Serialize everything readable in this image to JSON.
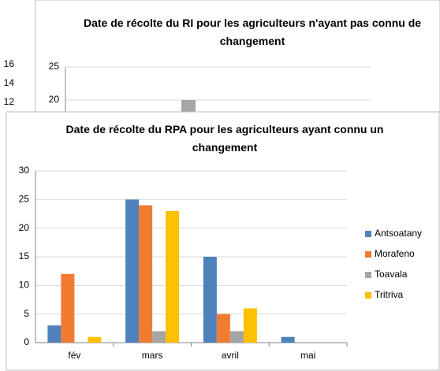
{
  "chart_data": [
    {
      "type": "bar",
      "title": "Date de récolte du RPA pour les agriculteurs ayant connu un changement",
      "categories": [
        "fév",
        "mars",
        "avril",
        "mai"
      ],
      "series": [
        {
          "name": "Antsoatany",
          "color": "#4f81bd",
          "values": [
            3,
            25,
            15,
            1
          ]
        },
        {
          "name": "Morafeno",
          "color": "#f07b31",
          "values": [
            12,
            24,
            5,
            0
          ]
        },
        {
          "name": "Toavala",
          "color": "#a5a5a5",
          "values": [
            0,
            2,
            2,
            0
          ]
        },
        {
          "name": "Tritriva",
          "color": "#ffc000",
          "values": [
            1,
            23,
            6,
            0
          ]
        }
      ],
      "ylim": [
        0,
        30
      ],
      "yticks": [
        0,
        5,
        10,
        15,
        20,
        25,
        30
      ],
      "grid": true,
      "legend": "right"
    },
    {
      "type": "bar",
      "title": "Date de récolte du RI pour les agriculteurs n'ayant pas connu de changement",
      "values": [
        20
      ],
      "color": "#a5a5a5",
      "ylim": [
        0,
        25
      ],
      "yticks": [
        20,
        25
      ]
    },
    {
      "type": "bar",
      "ylim": [
        0,
        16
      ],
      "yticks": [
        12,
        14,
        16
      ]
    }
  ]
}
